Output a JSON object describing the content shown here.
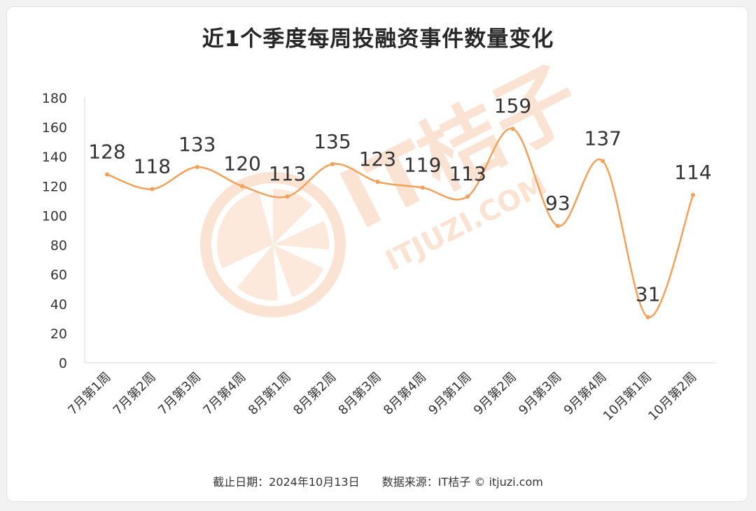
{
  "footer": {
    "date_text": "截止日期：2024年10月13日",
    "source_text": "数据来源：IT桔子 © itjuzi.com"
  },
  "watermark": {
    "brand": "IT桔子",
    "domain": "ITJUZI.COM"
  },
  "colors": {
    "line": "#f2a05a",
    "axis": "#d9d9d9",
    "watermark": "#fbe3d3"
  },
  "chart_data": {
    "type": "line",
    "title": "近1个季度每周投融资事件数量变化",
    "categories": [
      "7月第1周",
      "7月第2周",
      "7月第3周",
      "7月第4周",
      "8月第1周",
      "8月第2周",
      "8月第3周",
      "8月第4周",
      "9月第1周",
      "9月第2周",
      "9月第3周",
      "9月第4周",
      "10月第1周",
      "10月第2周"
    ],
    "series": [
      {
        "values": [
          128,
          118,
          133,
          120,
          113,
          135,
          123,
          119,
          113,
          159,
          93,
          137,
          31,
          114
        ]
      }
    ],
    "ylim": [
      0,
      180
    ],
    "yticks": [
      0,
      20,
      40,
      60,
      80,
      100,
      120,
      140,
      160,
      180
    ],
    "smooth": true,
    "data_labels": true,
    "legend": "none",
    "grid": false
  }
}
